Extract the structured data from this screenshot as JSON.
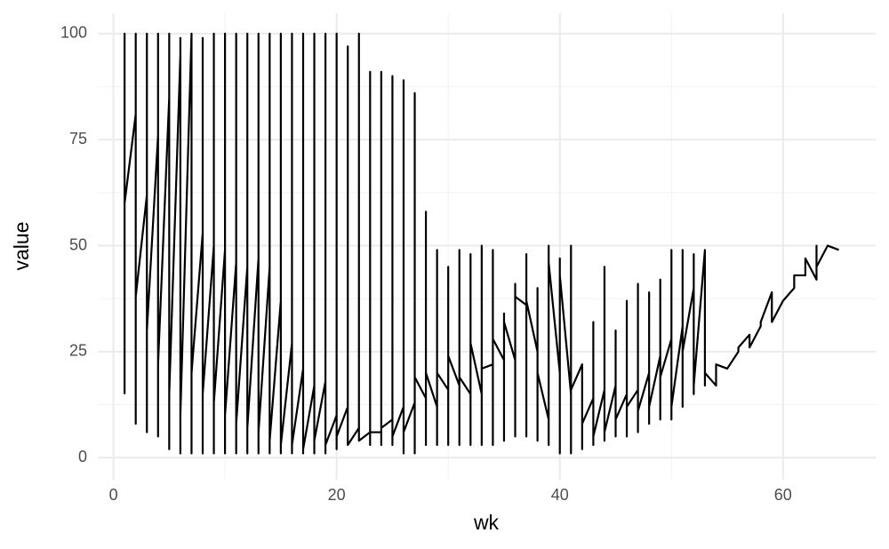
{
  "chart_data": {
    "type": "line",
    "x_label": "wk",
    "y_label": "value",
    "color": "#000000",
    "grid": true,
    "xlim": [
      -1.4,
      68.3
    ],
    "ylim": [
      -5.2,
      104.8
    ],
    "xticks": [
      0,
      20,
      40,
      60
    ],
    "yticks": [
      0,
      25,
      50,
      75,
      100
    ],
    "x": [
      1,
      1,
      1,
      2,
      2,
      2,
      2,
      3,
      3,
      3,
      3,
      4,
      4,
      4,
      4,
      5,
      5,
      5,
      5,
      6,
      6,
      6,
      6,
      7,
      7,
      7,
      7,
      8,
      8,
      8,
      8,
      9,
      9,
      9,
      9,
      10,
      10,
      10,
      10,
      11,
      11,
      11,
      11,
      12,
      12,
      12,
      12,
      13,
      13,
      13,
      13,
      14,
      14,
      14,
      14,
      15,
      15,
      15,
      15,
      16,
      16,
      16,
      16,
      17,
      17,
      17,
      17,
      18,
      18,
      18,
      18,
      19,
      19,
      19,
      19,
      20,
      20,
      20,
      20,
      21,
      21,
      21,
      21,
      22,
      22,
      22,
      22,
      23,
      23,
      23,
      23,
      24,
      24,
      24,
      24,
      25,
      25,
      25,
      25,
      26,
      26,
      26,
      26,
      27,
      27,
      27,
      27,
      28,
      28,
      28,
      28,
      29,
      29,
      29,
      29,
      30,
      30,
      30,
      30,
      31,
      31,
      31,
      31,
      32,
      32,
      32,
      32,
      33,
      33,
      33,
      33,
      34,
      34,
      34,
      34,
      35,
      35,
      35,
      35,
      36,
      36,
      36,
      36,
      37,
      37,
      37,
      37,
      38,
      38,
      38,
      38,
      39,
      39,
      39,
      39,
      40,
      40,
      40,
      40,
      41,
      41,
      41,
      41,
      42,
      42,
      42,
      43,
      43,
      43,
      43,
      44,
      44,
      44,
      44,
      45,
      45,
      45,
      45,
      46,
      46,
      46,
      46,
      47,
      47,
      47,
      47,
      48,
      48,
      48,
      48,
      49,
      49,
      49,
      49,
      50,
      50,
      50,
      50,
      51,
      51,
      51,
      51,
      52,
      52,
      52,
      52,
      53,
      53,
      53,
      54,
      54,
      55,
      56,
      56,
      57,
      57,
      58,
      58,
      59,
      59,
      60,
      61,
      61,
      62,
      62,
      63,
      63,
      63,
      64,
      65
    ],
    "values": [
      15,
      100,
      60,
      81,
      8,
      100,
      38,
      62,
      6,
      100,
      30,
      76,
      5,
      100,
      22,
      85,
      2,
      100,
      15,
      95,
      1,
      99,
      10,
      100,
      1,
      100,
      20,
      53,
      1,
      99,
      15,
      50,
      1,
      100,
      13,
      49,
      1,
      100,
      10,
      46,
      1,
      100,
      8,
      45,
      1,
      100,
      7,
      47,
      1,
      100,
      6,
      45,
      1,
      100,
      4,
      37,
      1,
      100,
      3,
      27,
      1,
      100,
      3,
      21,
      1,
      100,
      2,
      17,
      1,
      100,
      4,
      18,
      1,
      100,
      3,
      10,
      2,
      100,
      5,
      12,
      3,
      97,
      3,
      7,
      5,
      100,
      4,
      6,
      3,
      91,
      6,
      6,
      3,
      91,
      7,
      9,
      3,
      90,
      5,
      12,
      1,
      89,
      6,
      13,
      1,
      86,
      19,
      14,
      3,
      58,
      20,
      12,
      3,
      49,
      20,
      16,
      3,
      45,
      24,
      17,
      3,
      49,
      19,
      15,
      3,
      48,
      27,
      15,
      3,
      50,
      21,
      22,
      3,
      49,
      28,
      23,
      4,
      34,
      32,
      23,
      5,
      41,
      38,
      36,
      5,
      48,
      37,
      25,
      4,
      40,
      20,
      9,
      3,
      50,
      46,
      20,
      1,
      47,
      43,
      15,
      1,
      50,
      16,
      22,
      2,
      8,
      14,
      3,
      32,
      5,
      16,
      4,
      45,
      6,
      17,
      5,
      30,
      9,
      15,
      5,
      37,
      12,
      16,
      6,
      41,
      11,
      20,
      8,
      39,
      12,
      24,
      9,
      42,
      19,
      28,
      9,
      49,
      12,
      31,
      12,
      49,
      25,
      40,
      15,
      48,
      17,
      49,
      17,
      20,
      17,
      22,
      21,
      25,
      26,
      29,
      26,
      31,
      32,
      39,
      32,
      37,
      40,
      43,
      43,
      47,
      42,
      50,
      45,
      50,
      49
    ]
  }
}
